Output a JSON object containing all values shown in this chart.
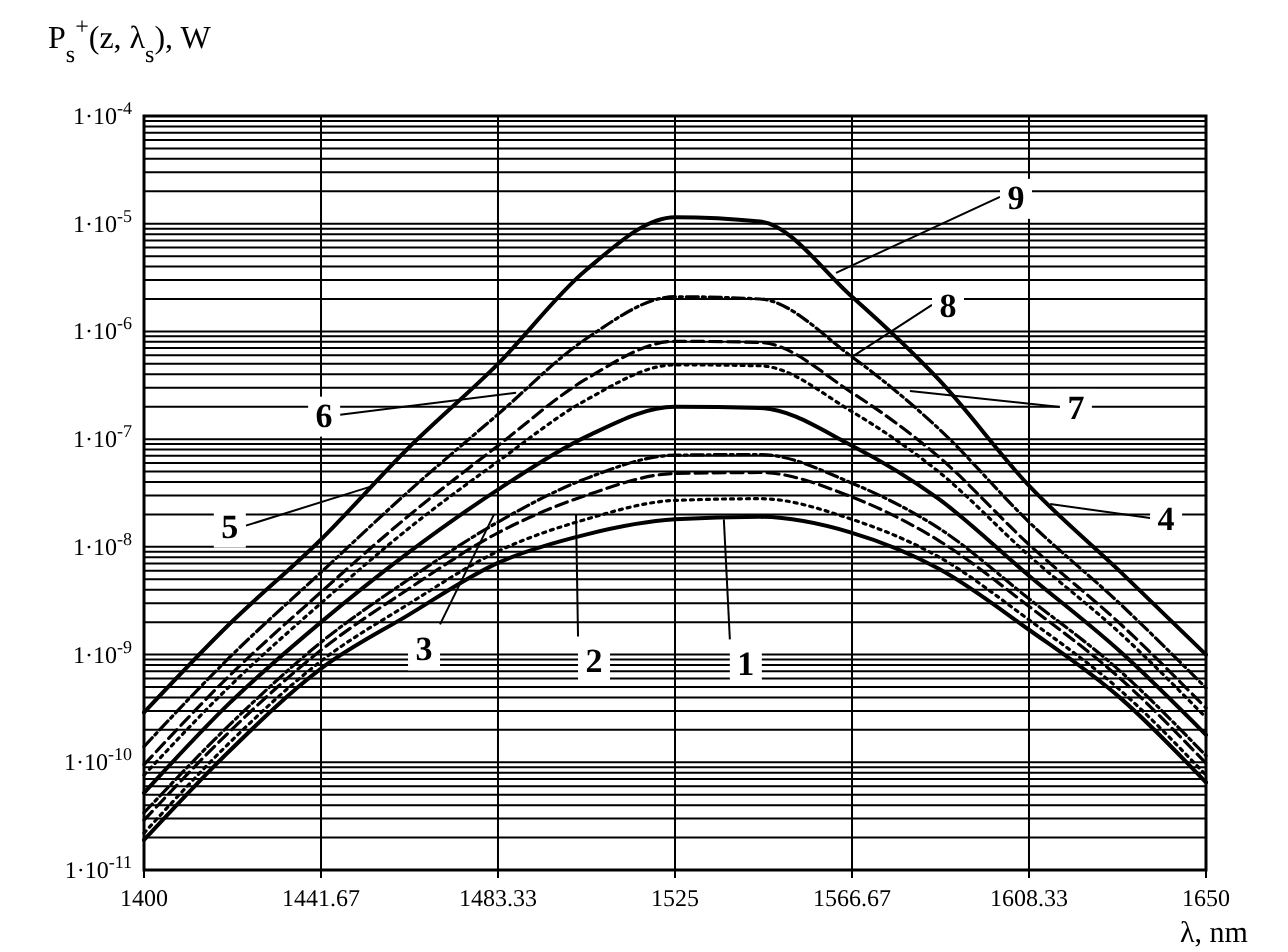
{
  "chart_data": {
    "type": "line",
    "ylabel": "P$_{s}$$^{+}$(z, λ$_{s}$),  W",
    "xlabel": "λ, nm",
    "log": "y",
    "grid": true,
    "marker": "none",
    "x": [
      1400,
      1420,
      1441.67,
      1462,
      1483.33,
      1504,
      1525,
      1545,
      1566.67,
      1587,
      1608.33,
      1630,
      1650
    ],
    "xlim": [
      1400,
      1650
    ],
    "xticks": [
      1400,
      1441.67,
      1483.33,
      1525,
      1566.67,
      1608.33,
      1650
    ],
    "ylim": [
      1e-11,
      0.0001
    ],
    "yticks": [
      {
        "value": 1e-11,
        "label": "1·10$^{-11}$"
      },
      {
        "value": 1e-10,
        "label": "1·10$^{-10}$"
      },
      {
        "value": 1e-09,
        "label": "1·10$^{-9}$"
      },
      {
        "value": 1e-08,
        "label": "1·10$^{-8}$"
      },
      {
        "value": 1e-07,
        "label": "1·10$^{-7}$"
      },
      {
        "value": 1e-06,
        "label": "1·10$^{-6}$"
      },
      {
        "value": 1e-05,
        "label": "1·10$^{-5}$"
      },
      {
        "value": 0.0001,
        "label": "1·10$^{-4}$"
      }
    ],
    "series": [
      {
        "color": "#000000",
        "line_style": "solid",
        "values": [
          1.9e-11,
          1.26e-10,
          7.4e-10,
          2.3e-09,
          7.1e-09,
          1.3e-08,
          1.8e-08,
          1.9e-08,
          1.35e-08,
          6.3e-09,
          1.7e-09,
          3.9e-10,
          6.5e-11
        ]
      },
      {
        "color": "#000000",
        "line_style": "dotted",
        "values": [
          2.2e-11,
          1.5e-10,
          8.7e-10,
          2.9e-09,
          9.1e-09,
          1.8e-08,
          2.7e-08,
          2.8e-08,
          1.8e-08,
          8.1e-09,
          2.1e-09,
          4.6e-10,
          7.6e-11
        ]
      },
      {
        "color": "#000000",
        "line_style": "dashed",
        "values": [
          2.9e-11,
          1.9e-10,
          1.1e-09,
          4e-09,
          1.35e-08,
          3e-08,
          4.8e-08,
          4.9e-08,
          2.9e-08,
          1.15e-08,
          2.8e-09,
          5.9e-10,
          9.8e-11
        ]
      },
      {
        "color": "#000000",
        "line_style": "dashdot",
        "values": [
          3.4e-11,
          2.2e-10,
          1.3e-09,
          4.9e-09,
          1.7e-08,
          4.3e-08,
          7.1e-08,
          7.2e-08,
          3.9e-08,
          1.5e-08,
          3.3e-09,
          6.9e-10,
          1.15e-10
        ]
      },
      {
        "color": "#000000",
        "line_style": "solid",
        "values": [
          5.2e-11,
          3.5e-10,
          2e-09,
          8.7e-09,
          3.4e-08,
          1.05e-07,
          2e-07,
          1.95e-07,
          8.7e-08,
          2.8e-08,
          5.4e-09,
          1.05e-09,
          1.8e-10
        ]
      },
      {
        "color": "#000000",
        "line_style": "dotted",
        "values": [
          7.6e-11,
          5e-10,
          3e-09,
          1.45e-08,
          6.2e-08,
          2.3e-07,
          4.9e-07,
          4.8e-07,
          1.8e-07,
          5e-08,
          8.3e-09,
          1.55e-09,
          2.6e-10
        ]
      },
      {
        "color": "#000000",
        "line_style": "dashed",
        "values": [
          9.5e-11,
          6.3e-10,
          3.8e-09,
          1.9e-08,
          8.7e-08,
          3.6e-07,
          8.1e-07,
          7.9e-07,
          2.7e-07,
          6.9e-08,
          1.05e-08,
          1.9e-09,
          3.2e-10
        ]
      },
      {
        "color": "#000000",
        "line_style": "dashdot",
        "values": [
          1.4e-10,
          9.3e-10,
          5.8e-09,
          3.2e-08,
          1.7e-07,
          8.5e-07,
          2.1e-06,
          2e-06,
          5.8e-07,
          1.26e-07,
          1.7e-08,
          2.9e-09,
          4.9e-10
        ]
      },
      {
        "color": "#000000",
        "line_style": "solid",
        "values": [
          2.9e-10,
          1.9e-09,
          1.17e-08,
          8.1e-08,
          5e-07,
          3.7e-06,
          1.15e-05,
          1.05e-05,
          2.1e-06,
          3.6e-07,
          3.7e-08,
          5.8e-09,
          1e-09
        ]
      }
    ],
    "annotations": [
      {
        "text": "1",
        "x": 1536.5,
        "y": 1.8e-08
      },
      {
        "text": "2",
        "x": 1501.7,
        "y": 2e-08
      },
      {
        "text": "3",
        "x": 1482.4,
        "y": 2e-08
      },
      {
        "text": "4",
        "x": 1613.3,
        "y": 2.5e-08
      },
      {
        "text": "5",
        "x": 1454.1,
        "y": 3.7e-08
      },
      {
        "text": "6",
        "x": 1487.6,
        "y": 2.7e-07
      },
      {
        "text": "7",
        "x": 1580.3,
        "y": 2.8e-07
      },
      {
        "text": "8",
        "x": 1566.67,
        "y": 5.8e-07
      },
      {
        "text": "9",
        "x": 1562.9,
        "y": 3.5e-06
      }
    ]
  }
}
